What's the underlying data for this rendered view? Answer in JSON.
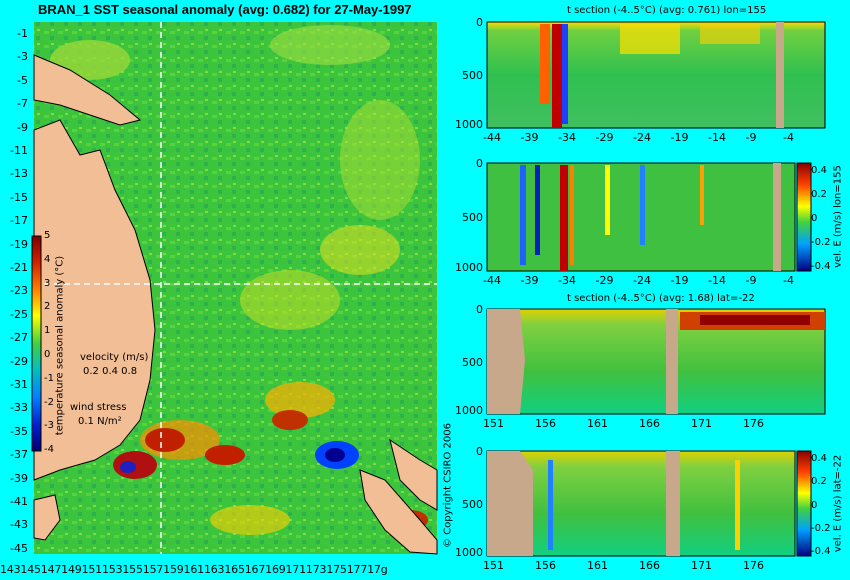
{
  "main_map": {
    "title": "BRAN_1 SST seasonal anomaly (avg: 0.682) for 27-May-1997",
    "lat_labels": [
      "-1",
      "-3",
      "-5",
      "-7",
      "-9",
      "-11",
      "-13",
      "-15",
      "-17",
      "-19",
      "-21",
      "-23",
      "-25",
      "-27",
      "-29",
      "-31",
      "-33",
      "-35",
      "-37",
      "-39",
      "-41",
      "-43",
      "-45"
    ],
    "lon_labels": "14314514714915115315515715916116316516716917117317517717g",
    "colorbar": {
      "label": "temperature seasonal anomaly (°C)",
      "ticks": [
        "5",
        "4",
        "3",
        "2",
        "1",
        "0",
        "-1",
        "-2",
        "-3",
        "-4"
      ]
    },
    "velocity_legend": {
      "title": "velocity (m/s)",
      "values": "0.2 0.4 0.8"
    },
    "wind_legend": {
      "title": "wind stress",
      "value": "0.1 N/m²"
    },
    "copyright": "© Copyright CSIRO 2006"
  },
  "panels": [
    {
      "id": "panel1",
      "title": "t section (-4..5°C) (avg: 0.761) lon=155",
      "y_ticks": [
        "0",
        "500",
        "1000"
      ],
      "x_ticks": [
        "-44",
        "-39",
        "-34",
        "-29",
        "-24",
        "-19",
        "-14",
        "-9",
        "-4"
      ]
    },
    {
      "id": "panel2",
      "title": "",
      "y_ticks": [
        "0",
        "500",
        "1000"
      ],
      "x_ticks": [
        "-44",
        "-39",
        "-34",
        "-29",
        "-24",
        "-19",
        "-14",
        "-9",
        "-4"
      ],
      "colorbar": {
        "label": "vel. E (m/s) lon=155",
        "ticks": [
          "0.4",
          "0.2",
          "0",
          "-0.2",
          "-0.4"
        ]
      }
    },
    {
      "id": "panel3",
      "title": "t section (-4..5°C) (avg: 1.68) lat=-22",
      "y_ticks": [
        "0",
        "500",
        "1000"
      ],
      "x_ticks": [
        "151",
        "156",
        "161",
        "166",
        "171",
        "176"
      ]
    },
    {
      "id": "panel4",
      "title": "",
      "y_ticks": [
        "0",
        "500",
        "1000"
      ],
      "x_ticks": [
        "151",
        "156",
        "161",
        "166",
        "171",
        "176"
      ],
      "colorbar": {
        "label": "vel. E (m/s) lat=-22",
        "ticks": [
          "0.4",
          "0.2",
          "0",
          "-0.2",
          "-0.4"
        ]
      }
    }
  ],
  "colors": {
    "background": "#00ffff",
    "land": "#e8b48a",
    "section_land": "#c8a88a",
    "ocean_base": "#33c433",
    "warm": "#cc2200",
    "cool": "#0033cc"
  }
}
